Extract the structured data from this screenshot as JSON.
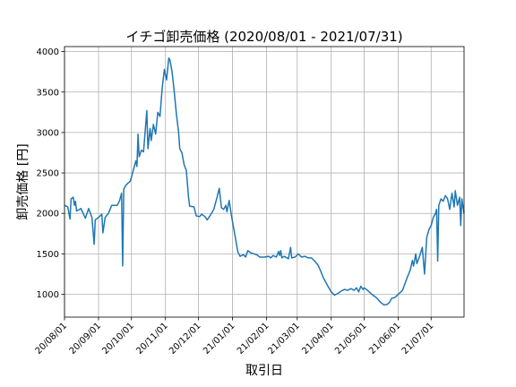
{
  "chart_data": {
    "type": "line",
    "title": "イチゴ卸売価格 (2020/08/01 - 2021/07/31)",
    "x_label": "取引日",
    "y_label": "卸売価格 [円]",
    "color": "#1f77b4",
    "grid": true,
    "xlim": [
      "2020-08-01",
      "2021-07-31"
    ],
    "ylim": [
      718,
      4062
    ],
    "yticks": [
      1000,
      1500,
      2000,
      2500,
      3000,
      3500,
      4000
    ],
    "xticks": [
      {
        "value": "2020-08-01",
        "label": "20/08/01"
      },
      {
        "value": "2020-09-01",
        "label": "20/09/01"
      },
      {
        "value": "2020-10-01",
        "label": "20/10/01"
      },
      {
        "value": "2020-11-01",
        "label": "20/11/01"
      },
      {
        "value": "2020-12-01",
        "label": "20/12/01"
      },
      {
        "value": "2021-01-01",
        "label": "21/01/01"
      },
      {
        "value": "2021-02-01",
        "label": "21/02/01"
      },
      {
        "value": "2021-03-01",
        "label": "21/03/01"
      },
      {
        "value": "2021-04-01",
        "label": "21/04/01"
      },
      {
        "value": "2021-05-01",
        "label": "21/05/01"
      },
      {
        "value": "2021-06-01",
        "label": "21/06/01"
      },
      {
        "value": "2021-07-01",
        "label": "21/07/01"
      }
    ],
    "x": [
      "2020-08-01",
      "2020-08-04",
      "2020-08-06",
      "2020-08-07",
      "2020-08-09",
      "2020-08-10",
      "2020-08-11",
      "2020-08-12",
      "2020-08-16",
      "2020-08-20",
      "2020-08-23",
      "2020-08-26",
      "2020-08-28",
      "2020-08-29",
      "2020-09-01",
      "2020-09-04",
      "2020-09-05",
      "2020-09-07",
      "2020-09-10",
      "2020-09-13",
      "2020-09-18",
      "2020-09-20",
      "2020-09-22",
      "2020-09-23",
      "2020-09-24",
      "2020-09-26",
      "2020-09-30",
      "2020-10-03",
      "2020-10-05",
      "2020-10-06",
      "2020-10-07",
      "2020-10-08",
      "2020-10-10",
      "2020-10-12",
      "2020-10-15",
      "2020-10-16",
      "2020-10-18",
      "2020-10-19",
      "2020-10-21",
      "2020-10-23",
      "2020-10-25",
      "2020-10-27",
      "2020-10-29",
      "2020-10-31",
      "2020-11-02",
      "2020-11-04",
      "2020-11-05",
      "2020-11-07",
      "2020-11-09",
      "2020-11-11",
      "2020-11-13",
      "2020-11-14",
      "2020-11-16",
      "2020-11-18",
      "2020-11-20",
      "2020-11-22",
      "2020-11-23",
      "2020-11-27",
      "2020-11-29",
      "2020-12-02",
      "2020-12-04",
      "2020-12-07",
      "2020-12-09",
      "2020-12-12",
      "2020-12-15",
      "2020-12-18",
      "2020-12-20",
      "2020-12-22",
      "2020-12-24",
      "2020-12-26",
      "2020-12-27",
      "2020-12-29",
      "2020-12-31",
      "2021-01-03",
      "2021-01-06",
      "2021-01-08",
      "2021-01-11",
      "2021-01-13",
      "2021-01-15",
      "2021-01-18",
      "2021-01-23",
      "2021-01-26",
      "2021-01-30",
      "2021-02-03",
      "2021-02-05",
      "2021-02-07",
      "2021-02-10",
      "2021-02-12",
      "2021-02-13",
      "2021-02-14",
      "2021-02-15",
      "2021-02-17",
      "2021-02-21",
      "2021-02-23",
      "2021-02-24",
      "2021-02-27",
      "2021-03-02",
      "2021-03-05",
      "2021-03-08",
      "2021-03-11",
      "2021-03-14",
      "2021-03-17",
      "2021-03-20",
      "2021-03-22",
      "2021-03-25",
      "2021-03-29",
      "2021-04-01",
      "2021-04-04",
      "2021-04-07",
      "2021-04-10",
      "2021-04-13",
      "2021-04-16",
      "2021-04-19",
      "2021-04-22",
      "2021-04-24",
      "2021-04-26",
      "2021-04-28",
      "2021-04-30",
      "2021-05-01",
      "2021-05-04",
      "2021-05-08",
      "2021-05-12",
      "2021-05-16",
      "2021-05-19",
      "2021-05-22",
      "2021-05-24",
      "2021-05-26",
      "2021-05-29",
      "2021-06-01",
      "2021-06-05",
      "2021-06-09",
      "2021-06-12",
      "2021-06-14",
      "2021-06-15",
      "2021-06-17",
      "2021-06-18",
      "2021-06-20",
      "2021-06-23",
      "2021-06-25",
      "2021-06-27",
      "2021-06-29",
      "2021-07-01",
      "2021-07-03",
      "2021-07-05",
      "2021-07-06",
      "2021-07-07",
      "2021-07-08",
      "2021-07-10",
      "2021-07-12",
      "2021-07-14",
      "2021-07-16",
      "2021-07-18",
      "2021-07-20",
      "2021-07-22",
      "2021-07-23",
      "2021-07-25",
      "2021-07-27",
      "2021-07-28",
      "2021-07-29",
      "2021-07-31"
    ],
    "values": [
      2100,
      2080,
      1930,
      2180,
      2200,
      2100,
      2150,
      2030,
      2060,
      1940,
      2060,
      1950,
      1620,
      1920,
      1950,
      1990,
      1760,
      1950,
      2000,
      2100,
      2100,
      2150,
      2250,
      1350,
      2300,
      2350,
      2400,
      2550,
      2650,
      2580,
      2980,
      2700,
      2780,
      2760,
      3270,
      2800,
      3050,
      2900,
      3100,
      2980,
      3250,
      3200,
      3550,
      3780,
      3650,
      3920,
      3900,
      3750,
      3500,
      3220,
      3000,
      2800,
      2750,
      2600,
      2530,
      2200,
      2090,
      2080,
      1970,
      1960,
      1990,
      1960,
      1920,
      1980,
      2050,
      2200,
      2310,
      2070,
      2050,
      2100,
      2020,
      2160,
      1980,
      1750,
      1520,
      1470,
      1490,
      1460,
      1540,
      1510,
      1490,
      1460,
      1460,
      1470,
      1450,
      1480,
      1460,
      1530,
      1480,
      1540,
      1450,
      1470,
      1440,
      1580,
      1450,
      1460,
      1500,
      1460,
      1470,
      1450,
      1450,
      1410,
      1360,
      1300,
      1200,
      1100,
      1030,
      990,
      1010,
      1040,
      1060,
      1050,
      1070,
      1050,
      1080,
      1030,
      1100,
      1060,
      1080,
      1050,
      1000,
      960,
      900,
      870,
      875,
      900,
      950,
      960,
      1000,
      1050,
      1200,
      1300,
      1420,
      1350,
      1500,
      1380,
      1450,
      1580,
      1250,
      1700,
      1800,
      1850,
      1950,
      2000,
      2050,
      1410,
      2100,
      2180,
      2150,
      2220,
      2180,
      2050,
      2250,
      2080,
      2280,
      2100,
      2200,
      1850,
      2180,
      2000
    ]
  }
}
